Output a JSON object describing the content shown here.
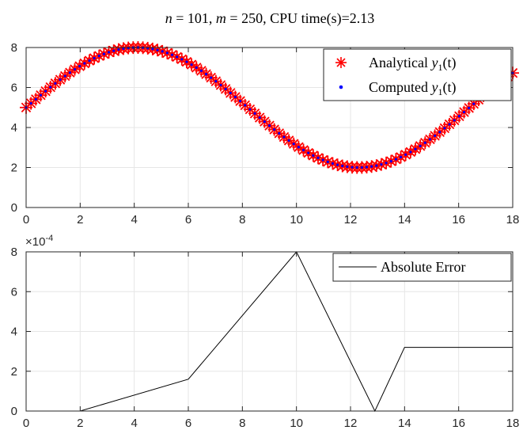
{
  "chart_data": [
    {
      "type": "scatter",
      "title": {
        "n_label": "n",
        "n_value": "101",
        "m_label": "m",
        "m_value": "250",
        "cpu_text": "CPU time(s)=2.13"
      },
      "xlim": [
        0,
        18
      ],
      "ylim": [
        0,
        8
      ],
      "xticks": [
        0,
        2,
        4,
        6,
        8,
        10,
        12,
        14,
        16,
        18
      ],
      "yticks": [
        0,
        2,
        4,
        6,
        8
      ],
      "grid": true,
      "legend_position": "top-right",
      "function": "y = 5 + 3*sin(2*pi*t/16.4)",
      "samples": 101,
      "series": [
        {
          "name": "Analytical y1(t)",
          "legend_text": "Analytical ",
          "legend_var": "y",
          "legend_sub": "1",
          "legend_arg": "(t)",
          "marker": "asterisk",
          "color": "#ff0000"
        },
        {
          "name": "Computed y1(t)",
          "legend_text": "Computed ",
          "legend_var": "y",
          "legend_sub": "1",
          "legend_arg": "(t)",
          "marker": "dot",
          "color": "#0000ff"
        }
      ]
    },
    {
      "type": "line",
      "xlim": [
        0,
        18
      ],
      "ylim": [
        0,
        8
      ],
      "xticks": [
        0,
        2,
        4,
        6,
        8,
        10,
        12,
        14,
        16,
        18
      ],
      "yticks": [
        0,
        2,
        4,
        6,
        8
      ],
      "exponent_label": {
        "base": "×10",
        "power": "-4"
      },
      "grid": true,
      "legend_position": "top-right",
      "series": [
        {
          "name": "Absolute Error",
          "color": "#000000",
          "x": [
            0,
            2,
            6,
            10,
            12.9,
            14,
            18
          ],
          "y": [
            0,
            0,
            1.6,
            8,
            0,
            3.2,
            3.2
          ]
        }
      ]
    }
  ]
}
